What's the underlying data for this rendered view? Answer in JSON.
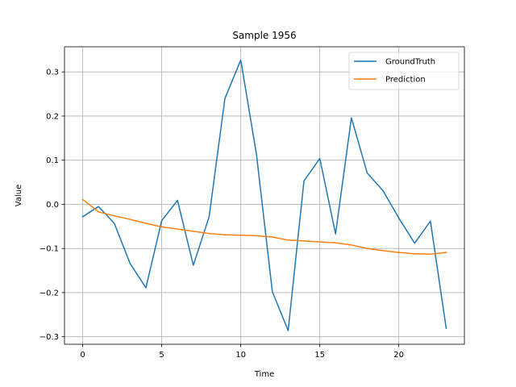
{
  "chart_data": {
    "type": "line",
    "title": "Sample 1956",
    "xlabel": "Time",
    "ylabel": "Value",
    "xlim": [
      -1.15,
      24.15
    ],
    "ylim": [
      -0.317,
      0.357
    ],
    "x_ticks": [
      0,
      5,
      10,
      15,
      20
    ],
    "y_ticks": [
      -0.3,
      -0.2,
      -0.1,
      0.0,
      0.1,
      0.2,
      0.3
    ],
    "y_tick_labels": [
      "−0.3",
      "−0.2",
      "−0.1",
      "0.0",
      "0.1",
      "0.2",
      "0.3"
    ],
    "grid": true,
    "legend_position": "top-right",
    "x": [
      0,
      1,
      2,
      3,
      4,
      5,
      6,
      7,
      8,
      9,
      10,
      11,
      12,
      13,
      14,
      15,
      16,
      17,
      18,
      19,
      20,
      21,
      22,
      23
    ],
    "series": [
      {
        "name": "GroundTruth",
        "color": "#1f77b4",
        "values": [
          -0.028,
          -0.005,
          -0.043,
          -0.134,
          -0.189,
          -0.037,
          0.009,
          -0.138,
          -0.028,
          0.24,
          0.327,
          0.112,
          -0.198,
          -0.286,
          0.053,
          0.104,
          -0.067,
          0.196,
          0.071,
          0.031,
          -0.031,
          -0.088,
          -0.038,
          -0.281
        ]
      },
      {
        "name": "Prediction",
        "color": "#ff7f0e",
        "values": [
          0.011,
          -0.017,
          -0.026,
          -0.034,
          -0.043,
          -0.051,
          -0.056,
          -0.061,
          -0.066,
          -0.069,
          -0.07,
          -0.071,
          -0.074,
          -0.081,
          -0.083,
          -0.085,
          -0.087,
          -0.092,
          -0.1,
          -0.105,
          -0.109,
          -0.112,
          -0.113,
          -0.109
        ]
      }
    ]
  }
}
